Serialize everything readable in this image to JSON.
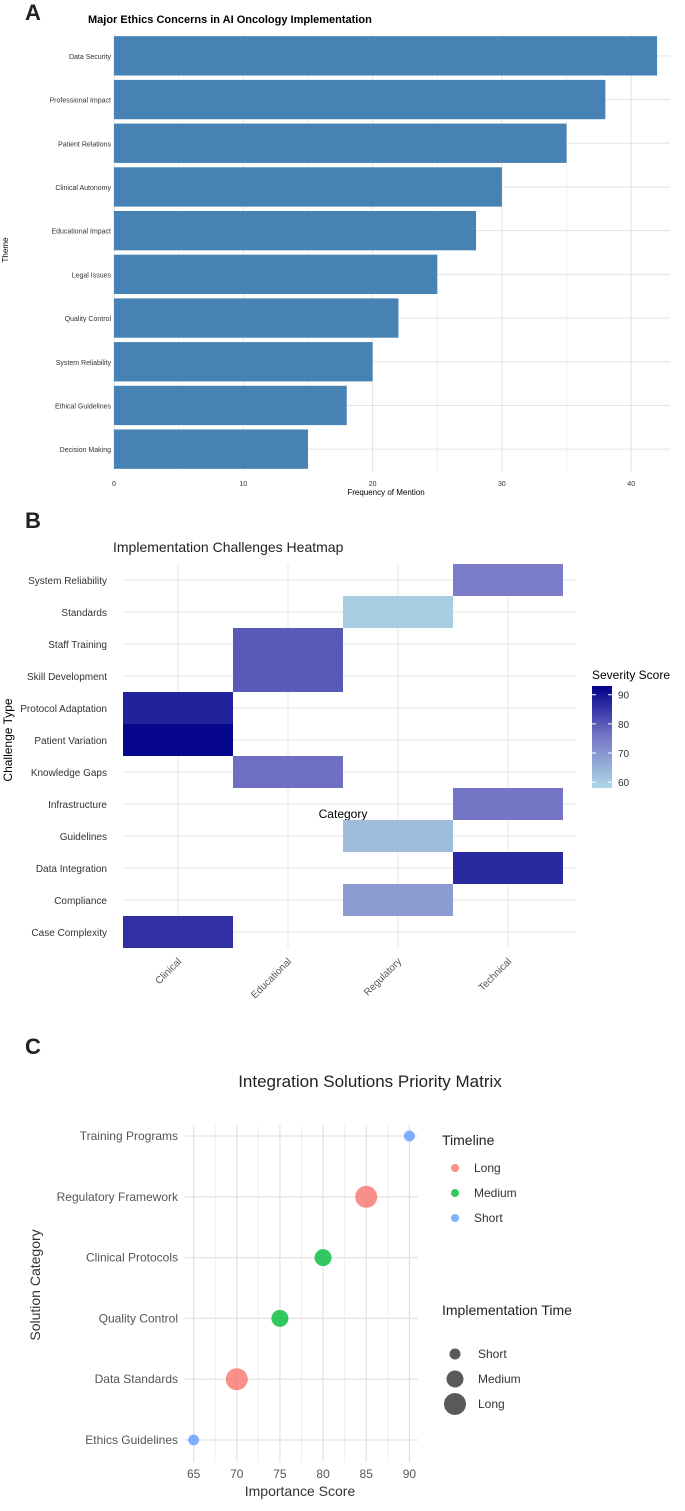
{
  "chart_data": [
    {
      "panel": "A",
      "type": "bar",
      "orientation": "horizontal",
      "title": "Major Ethics Concerns in AI Oncology Implementation",
      "xlabel": "Frequency of Mention",
      "ylabel": "Theme",
      "categories": [
        "Data Security",
        "Professional Impact",
        "Patient Relations",
        "Clinical Autonomy",
        "Educational Impact",
        "Legal Issues",
        "Quality Control",
        "System Reliability",
        "Ethical Guidelines",
        "Decision Making"
      ],
      "values": [
        42,
        38,
        35,
        30,
        28,
        25,
        22,
        20,
        18,
        15
      ],
      "xticks": [
        0,
        10,
        20,
        30,
        40
      ],
      "xlim": [
        0,
        43
      ],
      "bar_color": "#4682B4",
      "grid": true
    },
    {
      "panel": "B",
      "type": "heatmap",
      "title": "Implementation Challenges Heatmap",
      "xlabel": "Category",
      "ylabel": "Challenge Type",
      "x_categories": [
        "Clinical",
        "Educational",
        "Regulatory",
        "Technical"
      ],
      "y_categories": [
        "System Reliability",
        "Standards",
        "Staff Training",
        "Skill Development",
        "Protocol Adaptation",
        "Patient Variation",
        "Knowledge Gaps",
        "Infrastructure",
        "Guidelines",
        "Data Integration",
        "Compliance",
        "Case Complexity"
      ],
      "cells": [
        {
          "x": "Technical",
          "y": "System Reliability",
          "value": 75
        },
        {
          "x": "Regulatory",
          "y": "Standards",
          "value": 60
        },
        {
          "x": "Educational",
          "y": "Staff Training",
          "value": 80
        },
        {
          "x": "Educational",
          "y": "Skill Development",
          "value": 80
        },
        {
          "x": "Clinical",
          "y": "Protocol Adaptation",
          "value": 88
        },
        {
          "x": "Clinical",
          "y": "Patient Variation",
          "value": 92
        },
        {
          "x": "Educational",
          "y": "Knowledge Gaps",
          "value": 77
        },
        {
          "x": "Technical",
          "y": "Infrastructure",
          "value": 76
        },
        {
          "x": "Regulatory",
          "y": "Guidelines",
          "value": 63
        },
        {
          "x": "Technical",
          "y": "Data Integration",
          "value": 87
        },
        {
          "x": "Regulatory",
          "y": "Compliance",
          "value": 69
        },
        {
          "x": "Clinical",
          "y": "Case Complexity",
          "value": 86
        }
      ],
      "legend": {
        "title": "Severity Score",
        "ticks": [
          60,
          70,
          80,
          90
        ],
        "range": [
          58,
          93
        ],
        "low_color": "#ADD8E6",
        "high_color": "#00008B",
        "placement": "right"
      },
      "grid": true
    },
    {
      "panel": "C",
      "type": "scatter",
      "title": "Integration Solutions Priority Matrix",
      "xlabel": "Importance Score",
      "ylabel": "Solution Category",
      "categories": [
        "Training Programs",
        "Regulatory Framework",
        "Clinical Protocols",
        "Quality Control",
        "Data Standards",
        "Ethics Guidelines"
      ],
      "points": [
        {
          "category": "Training Programs",
          "x": 90,
          "timeline": "Short",
          "implementation_time": "Short"
        },
        {
          "category": "Regulatory Framework",
          "x": 85,
          "timeline": "Long",
          "implementation_time": "Long"
        },
        {
          "category": "Clinical Protocols",
          "x": 80,
          "timeline": "Medium",
          "implementation_time": "Medium"
        },
        {
          "category": "Quality Control",
          "x": 75,
          "timeline": "Medium",
          "implementation_time": "Medium"
        },
        {
          "category": "Data Standards",
          "x": 70,
          "timeline": "Long",
          "implementation_time": "Long"
        },
        {
          "category": "Ethics Guidelines",
          "x": 65,
          "timeline": "Short",
          "implementation_time": "Short"
        }
      ],
      "xticks": [
        65,
        70,
        75,
        80,
        85,
        90
      ],
      "xlim": [
        64,
        91
      ],
      "legend_color": {
        "title": "Timeline",
        "entries": [
          {
            "label": "Long",
            "color": "#F8766D"
          },
          {
            "label": "Medium",
            "color": "#00BA38"
          },
          {
            "label": "Short",
            "color": "#619CFF"
          }
        ]
      },
      "legend_size": {
        "title": "Implementation Time",
        "entries": [
          "Short",
          "Medium",
          "Long"
        ]
      },
      "grid": true
    }
  ],
  "panels": {
    "a": "A",
    "b": "B",
    "c": "C"
  }
}
